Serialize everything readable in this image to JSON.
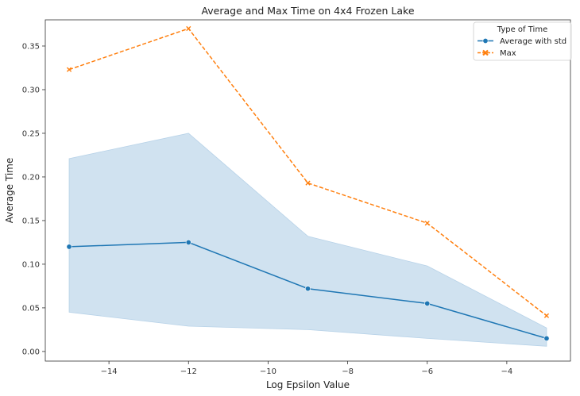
{
  "chart_data": {
    "type": "line",
    "title": "Average and Max Time on 4x4 Frozen Lake",
    "xlabel": "Log Epsilon Value",
    "ylabel": "Average Time",
    "xlim": [
      -15.6,
      -2.4
    ],
    "ylim": [
      -0.011,
      0.38
    ],
    "xticks": [
      -14,
      -12,
      -10,
      -8,
      -6,
      -4
    ],
    "xtick_labels": [
      "−14",
      "−12",
      "−10",
      "−8",
      "−6",
      "−4"
    ],
    "yticks": [
      0.0,
      0.05,
      0.1,
      0.15,
      0.2,
      0.25,
      0.3,
      0.35
    ],
    "ytick_labels": [
      "0.00",
      "0.05",
      "0.10",
      "0.15",
      "0.20",
      "0.25",
      "0.30",
      "0.35"
    ],
    "grid": false,
    "legend": {
      "title": "Type of Time",
      "placement": "top-right",
      "entries": [
        "Average with std",
        "Max"
      ]
    },
    "x": [
      -15,
      -12,
      -9,
      -6,
      -3
    ],
    "series": [
      {
        "name": "Average with std",
        "values": [
          0.12,
          0.125,
          0.072,
          0.055,
          0.015
        ],
        "band_upper": [
          0.221,
          0.25,
          0.132,
          0.098,
          0.027
        ],
        "band_lower": [
          0.045,
          0.029,
          0.025,
          0.015,
          0.006
        ],
        "color": "#1f77b4",
        "band_color": "#b7d2e8",
        "marker": "circle",
        "linestyle": "solid"
      },
      {
        "name": "Max",
        "values": [
          0.323,
          0.37,
          0.193,
          0.147,
          0.041
        ],
        "color": "#ff7f0e",
        "marker": "x",
        "linestyle": "dashed"
      }
    ]
  }
}
